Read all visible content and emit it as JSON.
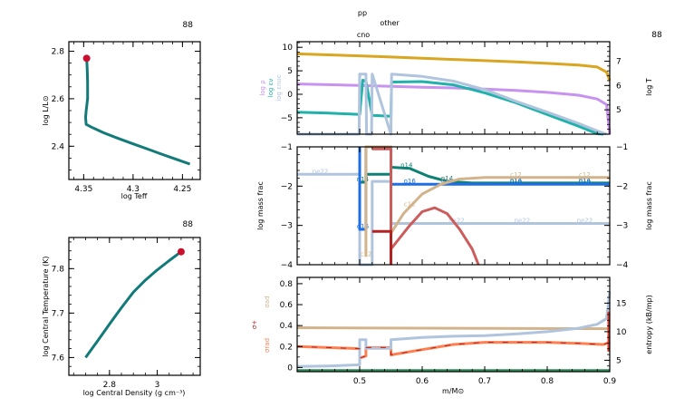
{
  "model_number": "88",
  "chart_data": [
    {
      "id": "hr",
      "type": "line",
      "title": "",
      "model_label": "88",
      "xlabel": "log Teff",
      "ylabel": "log L/L⊙",
      "xlim": [
        4.365,
        4.232
      ],
      "ylim": [
        2.26,
        2.84
      ],
      "xticks": [
        4.35,
        4.3,
        4.25
      ],
      "xtick_labels": [
        "4.35",
        "4.3",
        "4.25"
      ],
      "yticks": [
        2.4,
        2.6,
        2.8
      ],
      "ytick_labels": [
        "2.4",
        "2.6",
        "2.8"
      ],
      "series": [
        {
          "name": "track",
          "color": "#127a78",
          "x": [
            4.2425,
            4.255,
            4.27,
            4.285,
            4.3,
            4.315,
            4.33,
            4.342,
            4.3475,
            4.348,
            4.3475,
            4.346,
            4.346,
            4.3465,
            4.347
          ],
          "y": [
            2.325,
            2.343,
            2.365,
            2.388,
            2.41,
            2.433,
            2.457,
            2.48,
            2.492,
            2.52,
            2.55,
            2.6,
            2.67,
            2.73,
            2.77
          ]
        }
      ],
      "current_point": {
        "x": 4.347,
        "y": 2.77,
        "color": "#c8102e"
      }
    },
    {
      "id": "tc_rhoc",
      "type": "line",
      "title": "",
      "model_label": "88",
      "xlabel": "log Central Density (g cm⁻³)",
      "ylabel": "log Central Temperature (K)",
      "xlim": [
        2.63,
        3.18
      ],
      "ylim": [
        7.56,
        7.87
      ],
      "xticks": [
        2.8,
        3.0
      ],
      "xtick_labels": [
        "2.8",
        "3"
      ],
      "yticks": [
        7.6,
        7.7,
        7.8
      ],
      "ytick_labels": [
        "7.6",
        "7.7",
        "7.8"
      ],
      "series": [
        {
          "name": "track",
          "color": "#127a78",
          "x": [
            2.7,
            2.75,
            2.8,
            2.85,
            2.9,
            2.95,
            3.0,
            3.05,
            3.1
          ],
          "y": [
            7.6,
            7.637,
            7.675,
            7.712,
            7.747,
            7.774,
            7.797,
            7.818,
            7.838
          ]
        }
      ],
      "current_point": {
        "x": 3.1,
        "y": 7.838,
        "color": "#c8102e"
      }
    },
    {
      "id": "profile_top",
      "type": "line",
      "model_label": "88",
      "xlim": [
        0.4,
        0.9
      ],
      "ylim": [
        -8.5,
        11.2
      ],
      "yticks": [
        -5,
        0,
        5,
        10
      ],
      "ytick_labels": [
        "−5",
        "0",
        "5",
        "10"
      ],
      "y2lim": [
        4.0,
        7.8
      ],
      "y2ticks": [
        5,
        6,
        7
      ],
      "y2tick_labels": [
        "5",
        "6",
        "7"
      ],
      "ylabels": [
        {
          "text": "log ρ",
          "color": "#c893f0"
        },
        {
          "text": "log εν",
          "color": "#20b2aa"
        },
        {
          "text": "log εnuc",
          "color": "#b0c4de"
        }
      ],
      "y2label": {
        "text": "log T",
        "color": "#daa520"
      },
      "burning_labels": [
        "pp",
        "other",
        "cno"
      ],
      "series": [
        {
          "name": "log T",
          "axis": "right",
          "color": "#daa520",
          "x": [
            0.4,
            0.45,
            0.5,
            0.55,
            0.6,
            0.65,
            0.7,
            0.75,
            0.8,
            0.85,
            0.88,
            0.895,
            0.9
          ],
          "y": [
            7.3,
            7.26,
            7.22,
            7.17,
            7.12,
            7.07,
            7.02,
            6.97,
            6.91,
            6.84,
            6.76,
            6.55,
            6.2
          ]
        },
        {
          "name": "log rho",
          "axis": "left",
          "color": "#c893f0",
          "x": [
            0.4,
            0.45,
            0.5,
            0.55,
            0.6,
            0.65,
            0.7,
            0.75,
            0.8,
            0.85,
            0.88,
            0.895,
            0.9
          ],
          "y": [
            2.2,
            2.05,
            1.9,
            1.7,
            1.5,
            1.35,
            1.1,
            0.8,
            0.4,
            -0.2,
            -1.0,
            -2.2,
            -8.5
          ]
        },
        {
          "name": "log eps_nu",
          "axis": "left",
          "color": "#20b2aa",
          "x": [
            0.4,
            0.45,
            0.5,
            0.505,
            0.51,
            0.52,
            0.55,
            0.551,
            0.6,
            0.65,
            0.7,
            0.75,
            0.8,
            0.85,
            0.88,
            0.89
          ],
          "y": [
            -3.8,
            -4.0,
            -4.3,
            3.0,
            2.8,
            -4.5,
            -4.7,
            2.6,
            2.7,
            2.0,
            0.3,
            -1.8,
            -4.3,
            -6.8,
            -8.4,
            -8.5
          ]
        },
        {
          "name": "log eps_nuc",
          "axis": "left",
          "color": "#b0c4de",
          "x": [
            0.4,
            0.499,
            0.5,
            0.51,
            0.511,
            0.519,
            0.52,
            0.55,
            0.551,
            0.6,
            0.65,
            0.7,
            0.75,
            0.8,
            0.85,
            0.88,
            0.895
          ],
          "y": [
            -8.5,
            -8.5,
            4.3,
            4.3,
            -8.5,
            -8.5,
            4.3,
            -8.5,
            4.3,
            3.8,
            2.8,
            1.0,
            -1.5,
            -3.8,
            -6.2,
            -7.8,
            -8.5
          ]
        }
      ]
    },
    {
      "id": "profile_abund",
      "type": "line",
      "ylabel": "log mass frac",
      "y2label": "log mass frac",
      "xlim": [
        0.4,
        0.9
      ],
      "ylim": [
        -4,
        -1
      ],
      "yticks": [
        -4,
        -3,
        -2,
        -1
      ],
      "ytick_labels": [
        "−4",
        "−3",
        "−2",
        "−1"
      ],
      "series": [
        {
          "name": "ne22",
          "color": "#b0c4de",
          "x": [
            0.4,
            0.5,
            0.5,
            0.52,
            0.52,
            0.55,
            0.55,
            0.9
          ],
          "y": [
            -1.7,
            -1.7,
            -4.0,
            -4.0,
            -1.88,
            -1.88,
            -2.95,
            -2.95
          ],
          "labels_at": [
            0.437,
            0.655,
            0.76,
            0.86
          ]
        },
        {
          "name": "n14",
          "color": "#0e8074",
          "x": [
            0.5,
            0.51,
            0.51,
            0.55,
            0.55,
            0.58,
            0.61,
            0.64,
            0.68,
            0.9
          ],
          "y": [
            -1.9,
            -1.9,
            -1.7,
            -1.7,
            -1.52,
            -1.55,
            -1.75,
            -1.88,
            -1.92,
            -1.92
          ],
          "labels_at": [
            0.505,
            0.575,
            0.64,
            0.75,
            0.86
          ]
        },
        {
          "name": "o16",
          "color": "#1e6fe6",
          "x": [
            0.5,
            0.5,
            0.51,
            0.51,
            0.55,
            0.55,
            0.9
          ],
          "y": [
            -1.0,
            -3.1,
            -3.1,
            -1.0,
            -1.0,
            -1.95,
            -1.95
          ],
          "labels_at": [
            0.505,
            0.58,
            0.64,
            0.75,
            0.86
          ]
        },
        {
          "name": "c12",
          "color": "#d2b48c",
          "x": [
            0.51,
            0.51,
            0.55,
            0.55,
            0.57,
            0.6,
            0.63,
            0.66,
            0.7,
            0.9
          ],
          "y": [
            -3.8,
            -1.0,
            -1.0,
            -3.2,
            -2.7,
            -2.2,
            -1.95,
            -1.82,
            -1.78,
            -1.78
          ],
          "labels_at": [
            0.51,
            0.58,
            0.64,
            0.75,
            0.86
          ]
        },
        {
          "name": "he4",
          "color": "#cd5c5c",
          "x": [
            0.52,
            0.55,
            0.55,
            0.56,
            0.58,
            0.6,
            0.62,
            0.64,
            0.66,
            0.68,
            0.69
          ],
          "y": [
            -1.05,
            -1.05,
            -3.6,
            -3.4,
            -3.0,
            -2.65,
            -2.55,
            -2.7,
            -3.1,
            -3.6,
            -4.0
          ]
        },
        {
          "name": "h1",
          "color": "#b22222",
          "x": [
            0.52,
            0.55,
            0.55
          ],
          "y": [
            -3.15,
            -3.15,
            -4.0
          ]
        }
      ]
    },
    {
      "id": "profile_sigma",
      "type": "line",
      "xlabel": "m/M⊙",
      "xlim": [
        0.4,
        0.9
      ],
      "xticks": [
        0.5,
        0.6,
        0.7,
        0.8,
        0.9
      ],
      "xtick_labels": [
        "0.5",
        "0.6",
        "0.7",
        "0.8",
        "0.9"
      ],
      "ylim": [
        -0.04,
        0.86
      ],
      "yticks": [
        0,
        0.2,
        0.4,
        0.6,
        0.8
      ],
      "ytick_labels": [
        "0",
        "0.2",
        "0.4",
        "0.6",
        "0.8"
      ],
      "y2lim": [
        3.0,
        19.5
      ],
      "y2ticks": [
        5,
        10,
        15
      ],
      "y2tick_labels": [
        "5",
        "10",
        "15"
      ],
      "ylabels": [
        {
          "text": "σad",
          "color": "#d2b48c"
        },
        {
          "text": "σ+",
          "color": "#b22222"
        },
        {
          "text": "σrad",
          "color": "#ff7f50"
        }
      ],
      "y2label": "entropy (kB/mp)",
      "series": [
        {
          "name": "grad_ad",
          "axis": "left",
          "color": "#d2b48c",
          "x": [
            0.4,
            0.6,
            0.9
          ],
          "y": [
            0.38,
            0.375,
            0.37
          ]
        },
        {
          "name": "grad_rad",
          "axis": "left",
          "color": "#ff7f50",
          "x": [
            0.4,
            0.45,
            0.5,
            0.5,
            0.51,
            0.51,
            0.55,
            0.55,
            0.6,
            0.65,
            0.7,
            0.75,
            0.8,
            0.85,
            0.89,
            0.9
          ],
          "y": [
            0.2,
            0.19,
            0.18,
            0.09,
            0.11,
            0.19,
            0.19,
            0.12,
            0.17,
            0.22,
            0.24,
            0.24,
            0.24,
            0.23,
            0.22,
            0.24
          ]
        },
        {
          "name": "entropy",
          "axis": "right",
          "color": "#b0c4de",
          "x": [
            0.4,
            0.45,
            0.5,
            0.5,
            0.51,
            0.51,
            0.55,
            0.55,
            0.6,
            0.65,
            0.7,
            0.75,
            0.8,
            0.85,
            0.88,
            0.895,
            0.9
          ],
          "y": [
            3.9,
            4.0,
            4.2,
            8.6,
            8.6,
            7.1,
            7.1,
            8.6,
            9.0,
            9.2,
            9.3,
            9.6,
            10.0,
            10.6,
            11.3,
            12.3,
            17.0
          ]
        },
        {
          "name": "grad_T",
          "axis": "left",
          "color": "#2e8b57",
          "x": [
            0.4,
            0.9
          ],
          "y": [
            -0.03,
            -0.03
          ]
        }
      ]
    }
  ]
}
